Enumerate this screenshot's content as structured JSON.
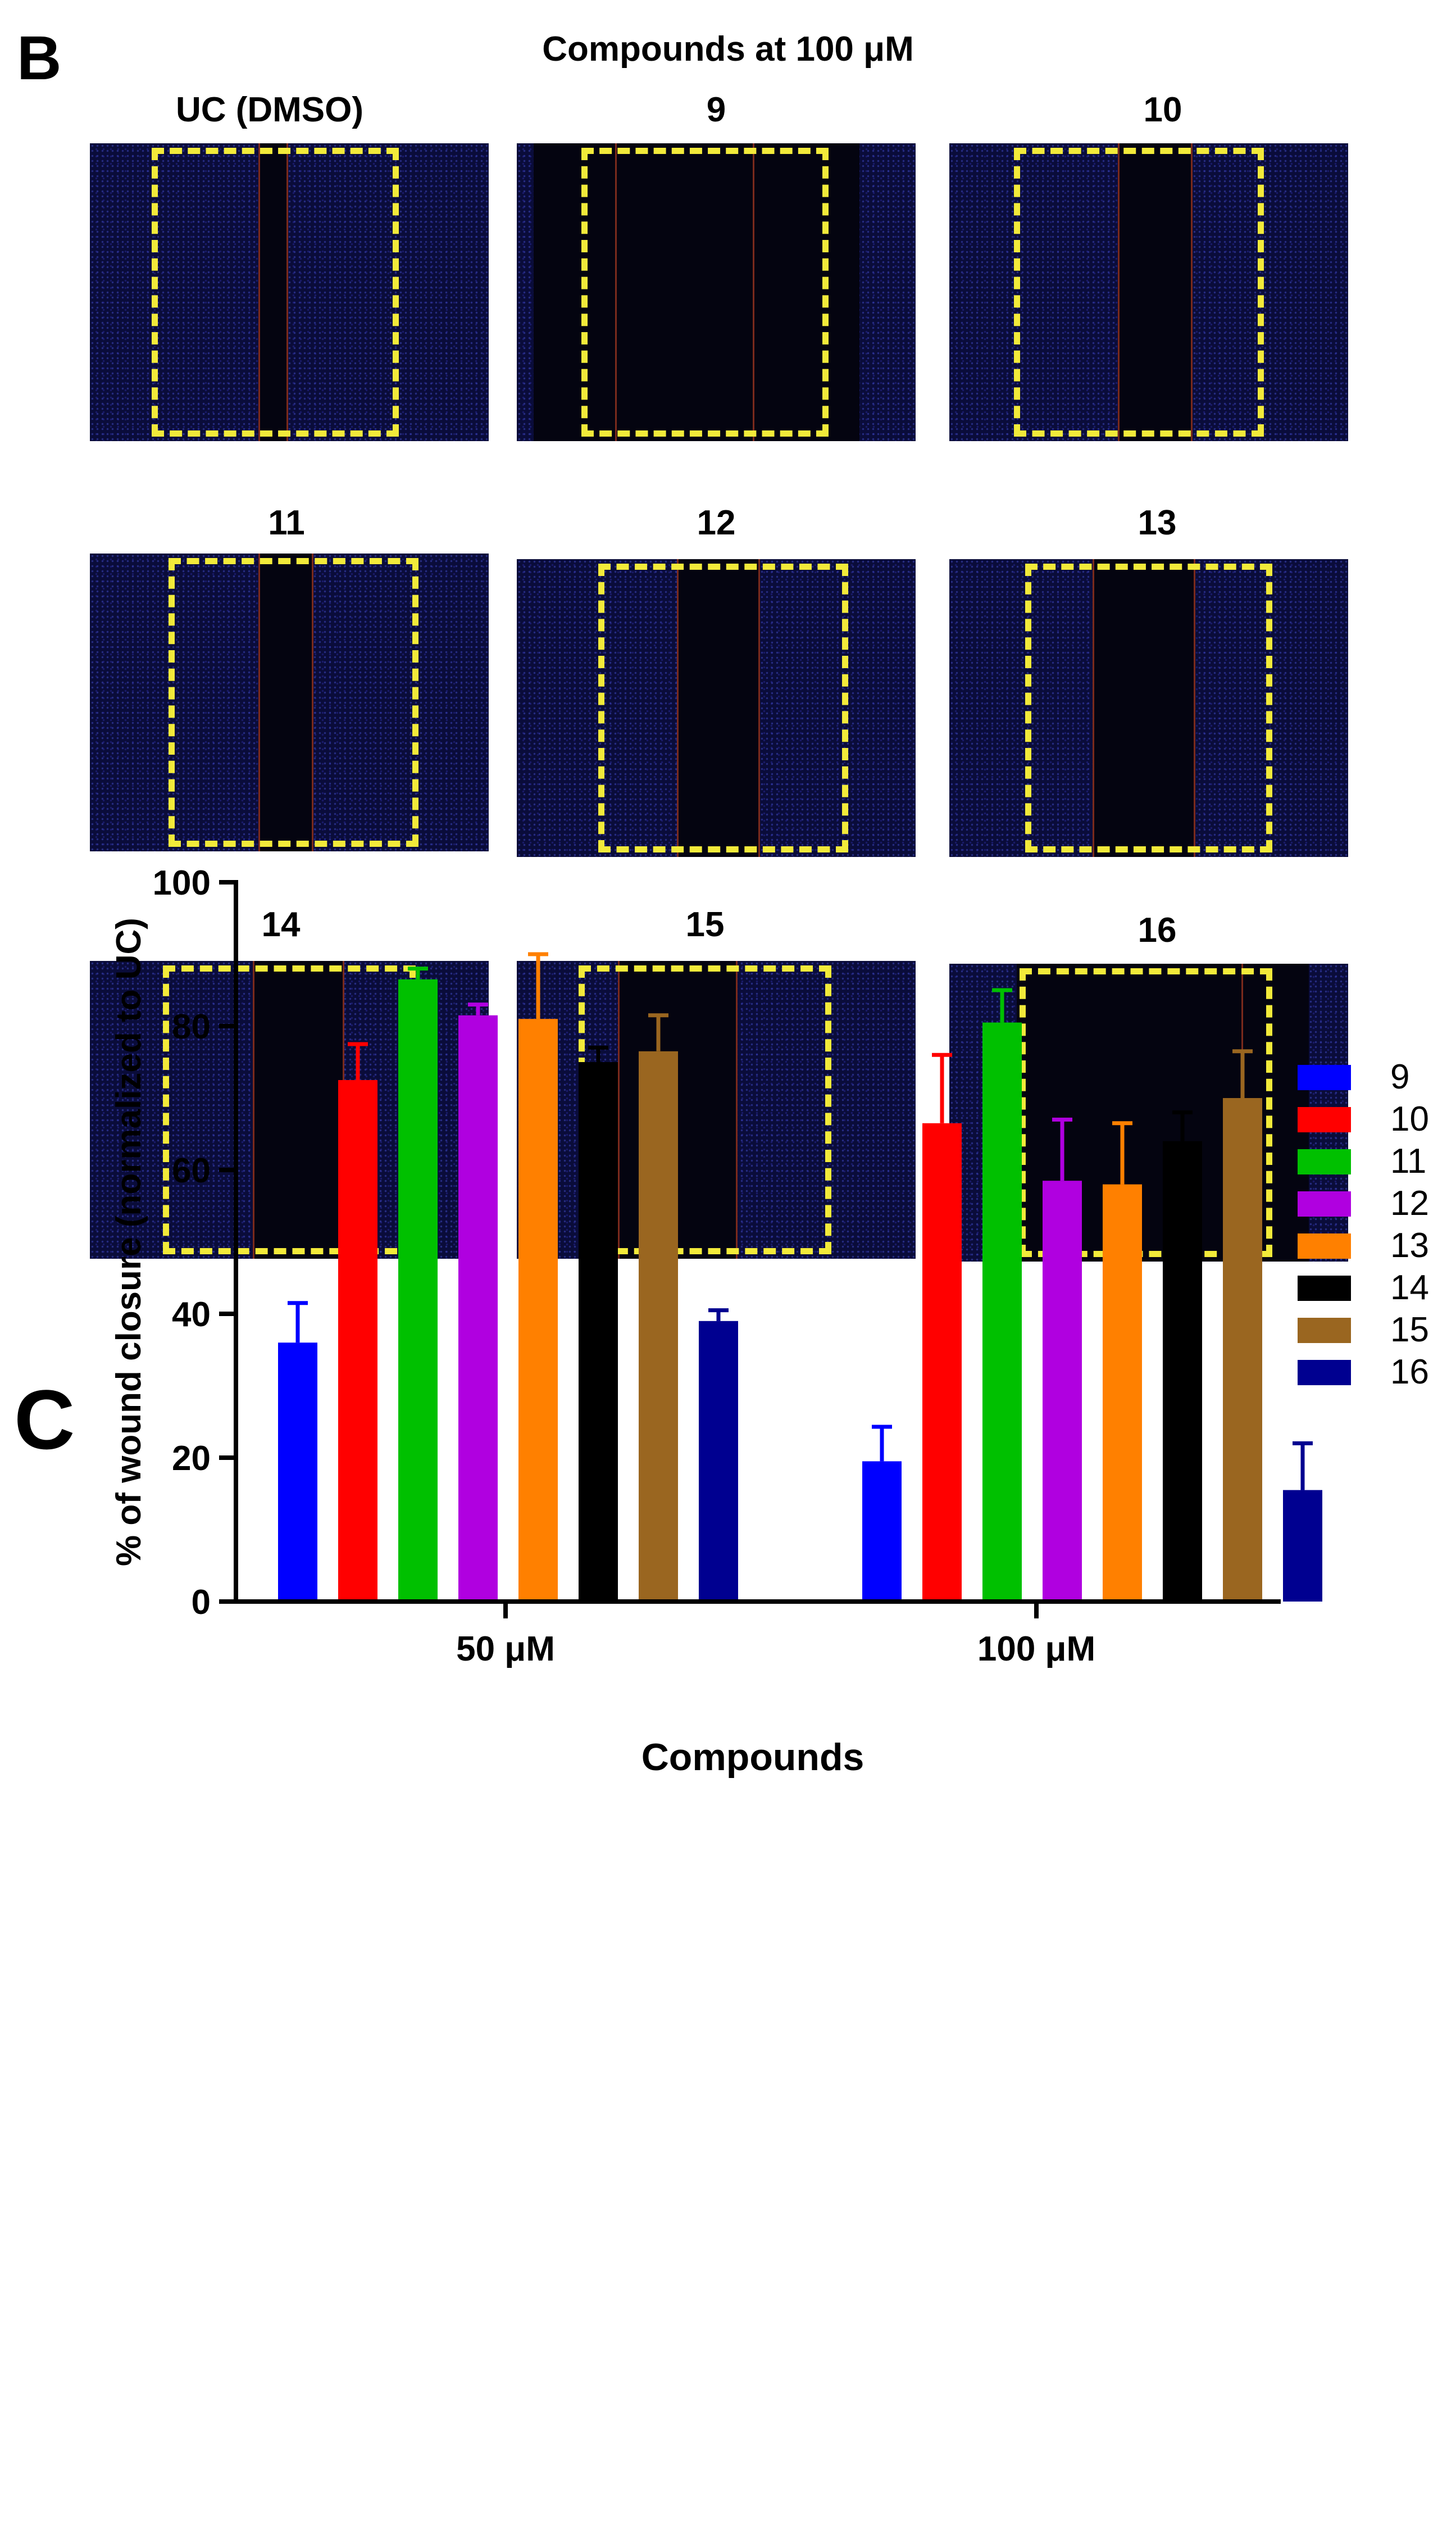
{
  "panel_b": {
    "letter": "B",
    "title": "Compounds at 100 μM",
    "images": [
      {
        "label": "UC (DMSO)"
      },
      {
        "label": "9"
      },
      {
        "label": "10"
      },
      {
        "label": "11"
      },
      {
        "label": "12"
      },
      {
        "label": "13"
      },
      {
        "label": "14"
      },
      {
        "label": "15"
      },
      {
        "label": "16"
      }
    ],
    "colors": {
      "background": "#0a0c3a",
      "wound": "#040410",
      "edge_line": "#7a2a1c",
      "roi": "#f2ea3a"
    }
  },
  "panel_c": {
    "letter": "C"
  },
  "chart_data": {
    "type": "bar",
    "title": "",
    "xlabel": "Compounds",
    "ylabel": "% of wound closure (normalized to UC)",
    "ylim": [
      0,
      100
    ],
    "yticks": [
      0,
      20,
      40,
      60,
      80,
      100
    ],
    "grid": false,
    "legend_position": "right",
    "categories": [
      "50 μM",
      "100 μM"
    ],
    "series": [
      {
        "name": "9",
        "color": "#0000ff",
        "values": [
          36,
          19.5
        ],
        "errors": [
          5.5,
          4.8
        ]
      },
      {
        "name": "10",
        "color": "#ff0000",
        "values": [
          72.5,
          66.5
        ],
        "errors": [
          5,
          9.5
        ]
      },
      {
        "name": "11",
        "color": "#00c000",
        "values": [
          86.5,
          80.5
        ],
        "errors": [
          1.5,
          4.5
        ]
      },
      {
        "name": "12",
        "color": "#b000e0",
        "values": [
          81.5,
          58.5
        ],
        "errors": [
          1.5,
          8.5
        ]
      },
      {
        "name": "13",
        "color": "#ff8000",
        "values": [
          81,
          58
        ],
        "errors": [
          9,
          8.5
        ]
      },
      {
        "name": "14",
        "color": "#000000",
        "values": [
          75,
          64
        ],
        "errors": [
          2,
          4
        ]
      },
      {
        "name": "15",
        "color": "#9a6620",
        "values": [
          76.5,
          70
        ],
        "errors": [
          5,
          6.5
        ]
      },
      {
        "name": "16",
        "color": "#000090",
        "values": [
          39,
          15.5
        ],
        "errors": [
          1.5,
          6.5
        ]
      }
    ]
  }
}
